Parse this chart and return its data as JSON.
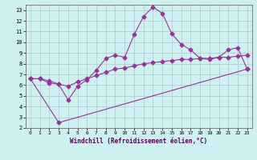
{
  "xlabel": "Windchill (Refroidissement éolien,°C)",
  "xlim": [
    -0.5,
    23.5
  ],
  "ylim": [
    2,
    13.5
  ],
  "xticks": [
    0,
    1,
    2,
    3,
    4,
    5,
    6,
    7,
    8,
    9,
    10,
    11,
    12,
    13,
    14,
    15,
    16,
    17,
    18,
    19,
    20,
    21,
    22,
    23
  ],
  "yticks": [
    2,
    3,
    4,
    5,
    6,
    7,
    8,
    9,
    10,
    11,
    12,
    13
  ],
  "background_color": "#cef0f0",
  "line_color": "#993399",
  "grid_color": "#aacccc",
  "line1_x": [
    0,
    1,
    2,
    3,
    4,
    5,
    6,
    7,
    8,
    9,
    10,
    11,
    12,
    13,
    14,
    15,
    16,
    17,
    18,
    19,
    20,
    21,
    22,
    23
  ],
  "line1_y": [
    6.6,
    6.6,
    6.2,
    6.1,
    4.6,
    5.9,
    6.5,
    7.4,
    8.5,
    8.8,
    8.6,
    10.7,
    12.4,
    13.3,
    12.7,
    10.8,
    9.8,
    9.3,
    8.5,
    8.4,
    8.6,
    9.3,
    9.5,
    7.5
  ],
  "line2_x": [
    0,
    1,
    2,
    3,
    4,
    5,
    6,
    7,
    8,
    9,
    10,
    11,
    12,
    13,
    14,
    15,
    16,
    17,
    18,
    19,
    20,
    21,
    22,
    23
  ],
  "line2_y": [
    6.6,
    6.6,
    6.4,
    6.1,
    5.9,
    6.3,
    6.6,
    6.9,
    7.2,
    7.5,
    7.6,
    7.8,
    8.0,
    8.1,
    8.2,
    8.3,
    8.4,
    8.4,
    8.5,
    8.5,
    8.6,
    8.6,
    8.7,
    8.8
  ],
  "line3_x": [
    0,
    3,
    23
  ],
  "line3_y": [
    6.6,
    2.5,
    7.5
  ],
  "marker": "D",
  "markersize": 2.5,
  "linewidth": 0.8
}
